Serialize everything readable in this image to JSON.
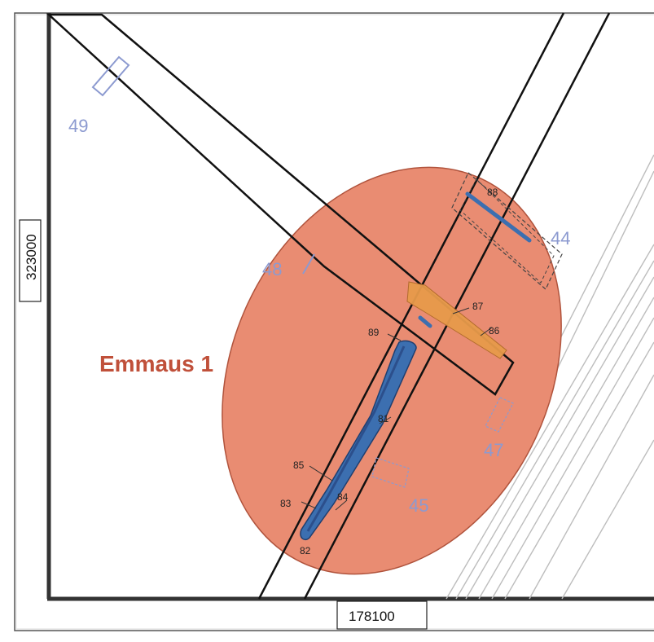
{
  "map": {
    "site_label": "Emmaus 1",
    "axes": {
      "easting_label": "178100",
      "northing_label": "323000"
    },
    "trench_labels": [
      "49",
      "48",
      "44",
      "47",
      "45"
    ],
    "feature_labels": [
      "88",
      "87",
      "86",
      "89",
      "81",
      "85",
      "83",
      "84",
      "82"
    ],
    "colors": {
      "site_area": "#e98c72",
      "site_outline": "#b0533c",
      "trench_outline": "#111111",
      "dashed_trench": "#444444",
      "feature_blue": "#3c6fb0",
      "feature_orange": "#e79a4a",
      "label_blue": "#8c9ad0"
    }
  }
}
